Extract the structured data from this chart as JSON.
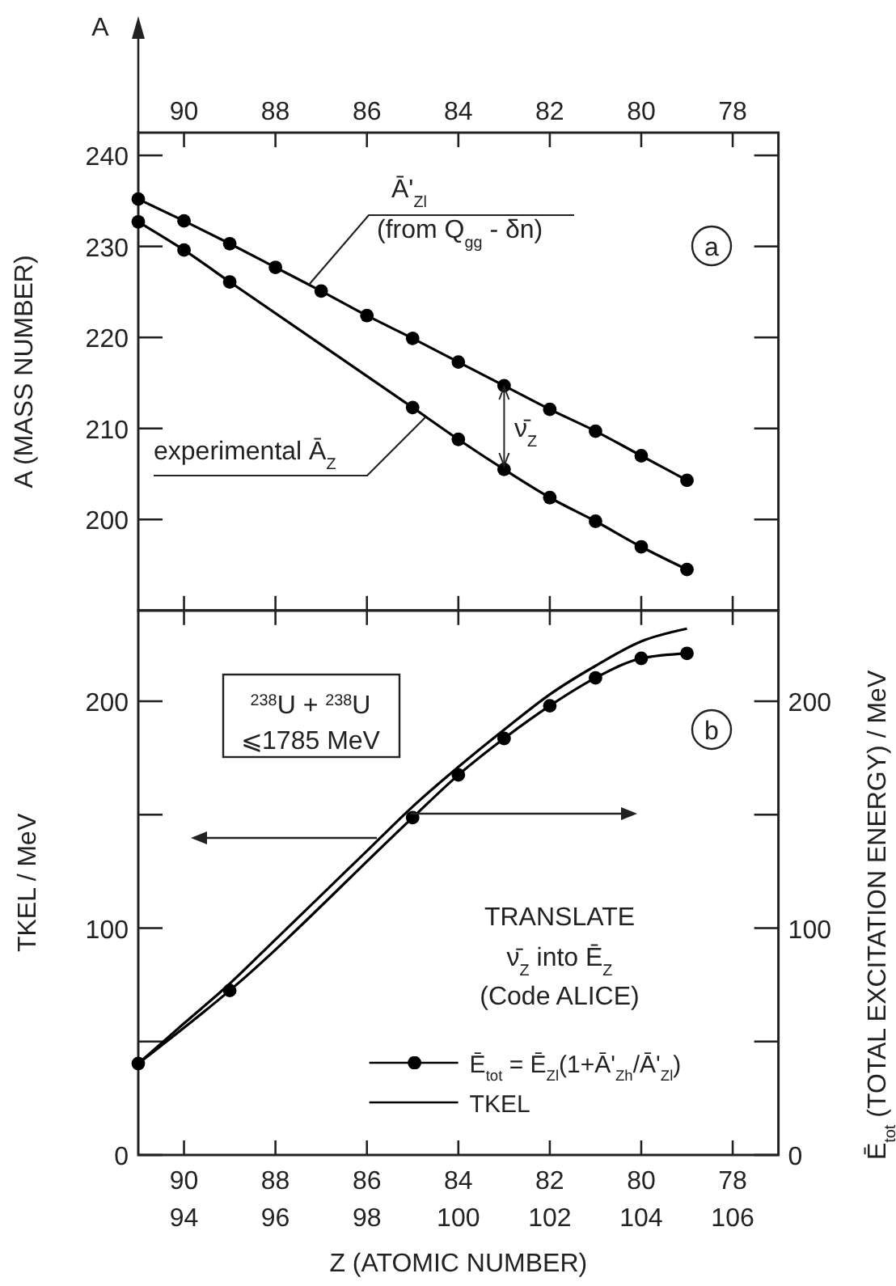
{
  "chart_data": [
    {
      "type": "line",
      "ylabel": "A (MASS NUMBER)",
      "annotations": [
        "A",
        "a",
        "ν̄$_{Z}$"
      ],
      "xlim": [
        91,
        77
      ],
      "xticks": [
        90,
        88,
        86,
        84,
        82,
        80,
        78
      ],
      "ylim": [
        190,
        242.5
      ],
      "yticks": [
        200,
        210,
        220,
        230,
        240
      ],
      "marker": "circle",
      "legend": false,
      "grid": false,
      "series": [
        {
          "name": "Ā'$_{Zl}$\n(from Q$_{gg}$ - δn)",
          "color": "#000000",
          "x": [
            91,
            90,
            89,
            88,
            87,
            86,
            85,
            84,
            83,
            82,
            81,
            80,
            79
          ],
          "values": [
            235.2,
            232.8,
            230.3,
            227.7,
            225.1,
            222.4,
            219.9,
            217.3,
            214.7,
            212.1,
            209.7,
            207.0,
            204.3
          ]
        },
        {
          "name": "experimental Ā$_{Z}$",
          "color": "#000000",
          "x": [
            91,
            90,
            89,
            85,
            84,
            83,
            82,
            81,
            80,
            79
          ],
          "values": [
            232.7,
            229.6,
            226.1,
            212.3,
            208.8,
            205.5,
            202.4,
            199.8,
            197.0,
            194.5
          ]
        }
      ]
    },
    {
      "type": "line",
      "xlabel": "Z (ATOMIC NUMBER)",
      "ylabel": "TKEL / MeV",
      "y2label": "Ē$_{tot}$ (TOTAL EXCITATION ENERGY) / MeV",
      "annotations": [
        "$^{238}$U + $^{238}$U",
        "⩽1785 MeV",
        "b",
        "TRANSLATE",
        "ν̄$_{Z}$ into Ē$_{Z}$",
        "(Code ALICE)"
      ],
      "xlim": [
        91,
        77
      ],
      "xticks": [
        90,
        88,
        86,
        84,
        82,
        80,
        78
      ],
      "x2lim": [
        93,
        107
      ],
      "x2ticks": [
        94,
        96,
        98,
        100,
        102,
        104,
        106
      ],
      "ylim": [
        0,
        240
      ],
      "yticks": [
        0,
        {
          "value": 50,
          "label": null
        },
        100,
        {
          "value": 150,
          "label": null
        },
        200
      ],
      "y2lim": [
        0,
        240
      ],
      "y2ticks": [
        0,
        {
          "value": 50,
          "label": null
        },
        100,
        {
          "value": 150,
          "label": null
        },
        200
      ],
      "legend": "bottom right",
      "grid": false,
      "series": [
        {
          "name": "Ē$_{tot}$ = Ē$_{Zl}$(1+Ā'$_{Zh}$/Ā'$_{Zl}$)",
          "color": "#000000",
          "marker": "circle",
          "x": [
            91,
            89,
            85,
            84,
            83,
            82,
            81,
            80,
            79
          ],
          "values": [
            40.3,
            72.5,
            148.7,
            167.5,
            183.6,
            198.0,
            210.3,
            218.9,
            221.1
          ]
        },
        {
          "name": "TKEL",
          "color": "#000000",
          "marker": "none",
          "x": [
            91,
            90,
            89,
            88,
            87,
            86,
            85,
            84,
            83,
            82,
            81,
            80,
            79
          ],
          "values": [
            40.3,
            58,
            75.5,
            95,
            114.5,
            134,
            153.5,
            171,
            187.4,
            203,
            215.6,
            226.4,
            232
          ]
        }
      ]
    }
  ]
}
